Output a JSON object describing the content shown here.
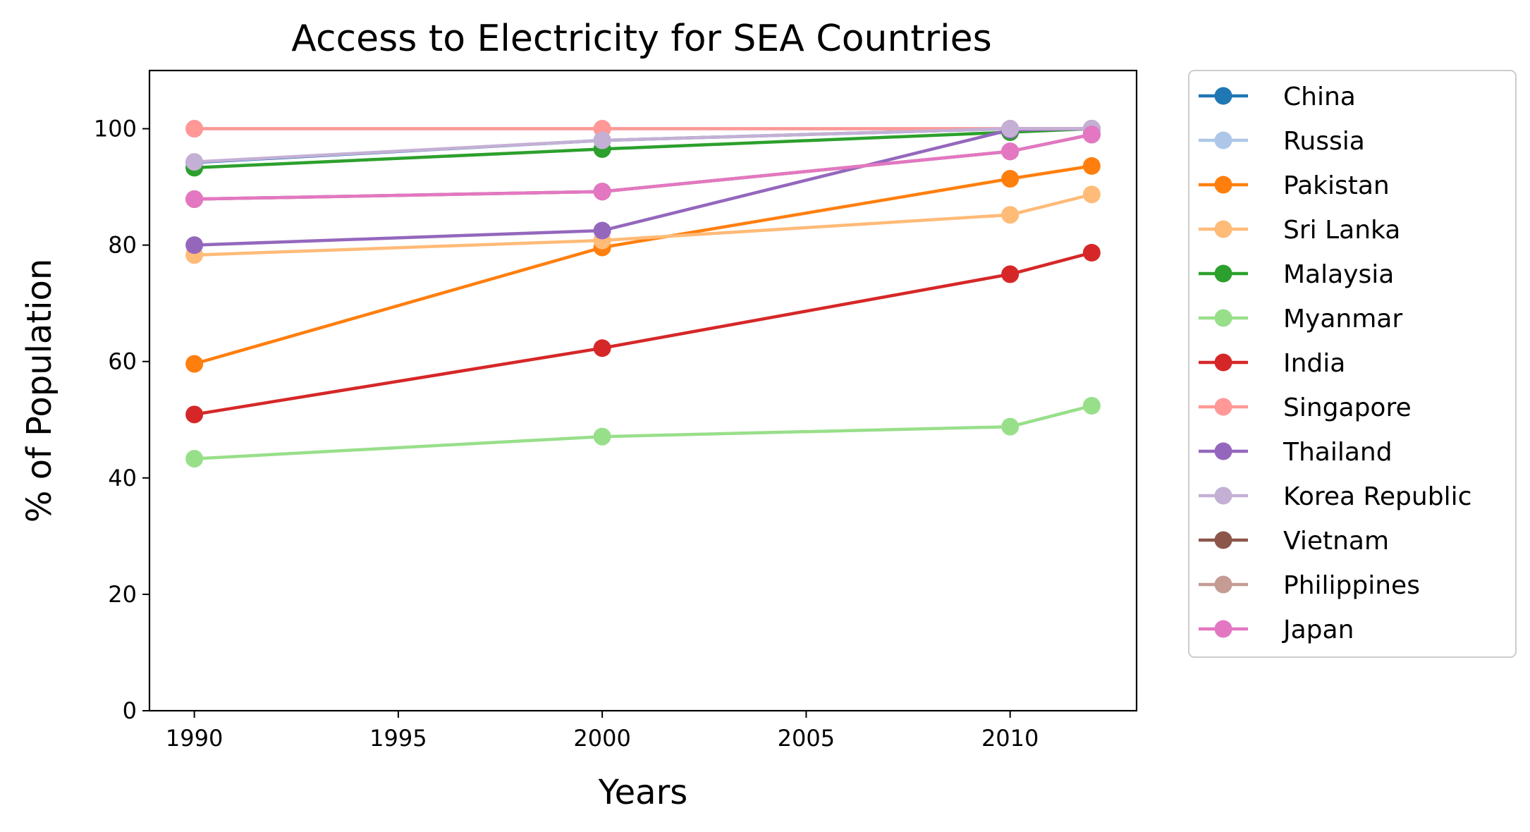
{
  "chart_data": {
    "type": "line",
    "title": "Access to Electricity for SEA Countries",
    "xlabel": "Years",
    "ylabel": "% of Population",
    "xlim": [
      1988.9,
      2013.1
    ],
    "ylim": [
      0,
      110
    ],
    "xticks": [
      1990,
      1995,
      2000,
      2005,
      2010
    ],
    "yticks": [
      0,
      20,
      40,
      60,
      80,
      100
    ],
    "grid": false,
    "legend_position": "outside-right",
    "x": [
      1990,
      2000,
      2010,
      2012
    ],
    "series": [
      {
        "name": "China",
        "color": "#1f77b4",
        "values": [
          94.2,
          98.0,
          100,
          100
        ]
      },
      {
        "name": "Russia",
        "color": "#aec7e8",
        "values": [
          100,
          100,
          100,
          100
        ]
      },
      {
        "name": "Pakistan",
        "color": "#ff7f0e",
        "values": [
          59.6,
          79.6,
          91.4,
          93.6
        ]
      },
      {
        "name": "Sri Lanka",
        "color": "#ffbb78",
        "values": [
          78.3,
          80.8,
          85.2,
          88.7
        ]
      },
      {
        "name": "Malaysia",
        "color": "#2ca02c",
        "values": [
          93.3,
          96.5,
          99.4,
          100
        ]
      },
      {
        "name": "Myanmar",
        "color": "#98df8a",
        "values": [
          43.3,
          47.1,
          48.8,
          52.4
        ]
      },
      {
        "name": "India",
        "color": "#d62728",
        "values": [
          50.9,
          62.3,
          75.0,
          78.7
        ]
      },
      {
        "name": "Singapore",
        "color": "#ff9896",
        "values": [
          100,
          100,
          100,
          100
        ]
      },
      {
        "name": "Thailand",
        "color": "#9467bd",
        "values": [
          80.0,
          82.5,
          99.8,
          100
        ]
      },
      {
        "name": "Korea Republic",
        "color": "#c5b0d5",
        "values": [
          94.3,
          98.0,
          100,
          100
        ]
      },
      {
        "name": "Vietnam",
        "color": "#8c564b",
        "values": [
          87.9,
          89.2,
          96.1,
          99.0
        ]
      },
      {
        "name": "Philippines",
        "color": "#c49c94",
        "values": [
          87.9,
          89.2,
          96.1,
          99.0
        ]
      },
      {
        "name": "Japan",
        "color": "#e377c2",
        "values": [
          87.9,
          89.2,
          96.1,
          99.0
        ]
      }
    ]
  }
}
